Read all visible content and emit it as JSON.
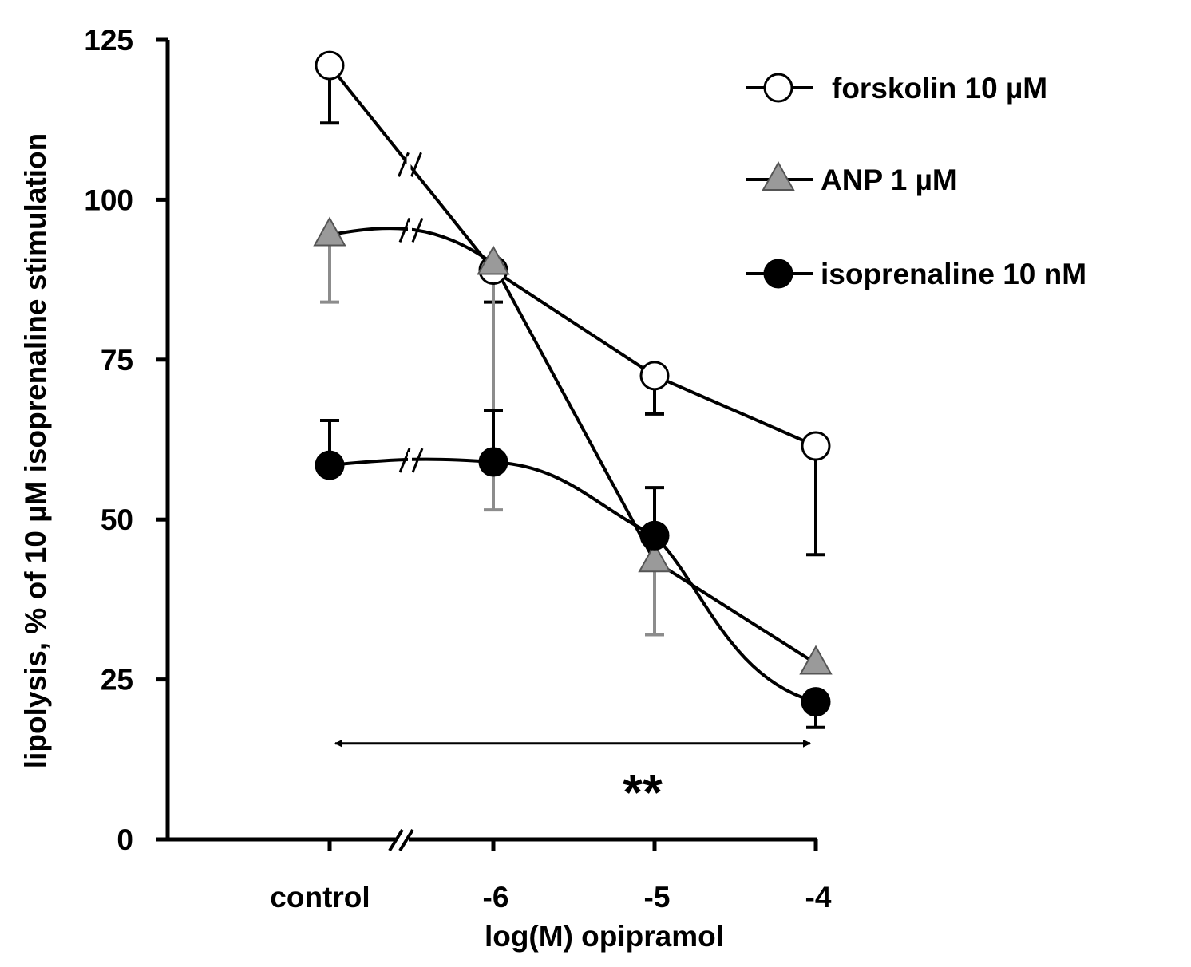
{
  "chart_data": {
    "type": "line",
    "ylabel": "lipolysis, % of 10 µM isoprenaline stimulation",
    "xlabel": "log(M) opipramol",
    "categories": [
      "control",
      "-6",
      "-5",
      "-4"
    ],
    "ylim": [
      0,
      125
    ],
    "yticks": [
      "0",
      "25",
      "50",
      "75",
      "100",
      "125"
    ],
    "axis_break": "between control and -6",
    "legend_position": "top-right",
    "series": [
      {
        "name": "forskolin 10 µM",
        "marker": "open-circle",
        "color": "#000000",
        "values": [
          121,
          89,
          72.5,
          61.5
        ],
        "error_low": [
          112,
          84,
          66.5,
          44.5
        ],
        "error_high": [
          121,
          89,
          72.5,
          61.5
        ]
      },
      {
        "name": "ANP 1 µM",
        "marker": "gray-triangle",
        "color": "#8c8c8c",
        "values": [
          94.5,
          90,
          43.5,
          27.5
        ],
        "error_low": [
          84,
          51.5,
          32,
          27.5
        ],
        "error_high": [
          94.5,
          90,
          43.5,
          27.5
        ]
      },
      {
        "name": "isoprenaline 10 nM",
        "marker": "filled-circle",
        "color": "#000000",
        "values": [
          58.5,
          59,
          47.5,
          21.5
        ],
        "error_low": [
          58.5,
          59,
          47.5,
          17.5
        ],
        "error_high": [
          65.5,
          67,
          55,
          21.5
        ]
      }
    ],
    "annotations": [
      {
        "type": "double-arrow",
        "from": "control",
        "to": "-4",
        "y": 15
      },
      {
        "type": "text",
        "text": "**"
      }
    ]
  }
}
